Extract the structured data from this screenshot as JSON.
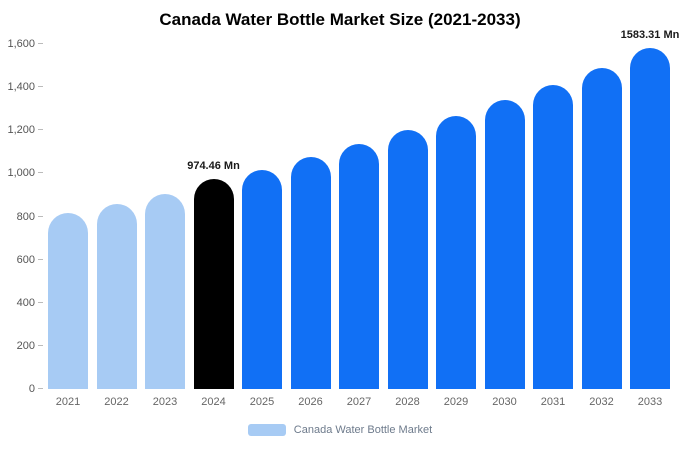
{
  "title": "Canada Water Bottle Market Size (2021-2033)",
  "legend": {
    "label": "Canada Water Bottle Market",
    "swatch_color": "#a7cbf4"
  },
  "colors": {
    "light_blue": "#a7cbf4",
    "highlight_black": "#000000",
    "bright_blue": "#1170f5",
    "axis_text": "#555555",
    "x_axis_text": "#666666",
    "title_text": "#000000"
  },
  "chart_data": {
    "type": "bar",
    "title": "Canada Water Bottle Market Size (2021-2033)",
    "xlabel": "",
    "ylabel": "",
    "categories": [
      "2021",
      "2022",
      "2023",
      "2024",
      "2025",
      "2026",
      "2027",
      "2028",
      "2029",
      "2030",
      "2031",
      "2032",
      "2033"
    ],
    "values": [
      815,
      860,
      905,
      974.46,
      1015,
      1075,
      1135,
      1200,
      1265,
      1340,
      1410,
      1490,
      1583.31
    ],
    "bar_colors": [
      "#a7cbf4",
      "#a7cbf4",
      "#a7cbf4",
      "#000000",
      "#1170f5",
      "#1170f5",
      "#1170f5",
      "#1170f5",
      "#1170f5",
      "#1170f5",
      "#1170f5",
      "#1170f5",
      "#1170f5"
    ],
    "annotations": [
      {
        "index": 3,
        "text": "974.46 Mn"
      },
      {
        "index": 12,
        "text": "1583.31 Mn"
      }
    ],
    "ylim": [
      0,
      1600
    ],
    "yticks": [
      0,
      200,
      400,
      600,
      800,
      1000,
      1200,
      1400,
      1600
    ],
    "ytick_labels": [
      "0",
      "200",
      "400",
      "600",
      "800",
      "1,000",
      "1,200",
      "1,400",
      "1,600"
    ],
    "grid": false,
    "legend_position": "bottom",
    "legend_entries": [
      "Canada Water Bottle Market"
    ]
  }
}
